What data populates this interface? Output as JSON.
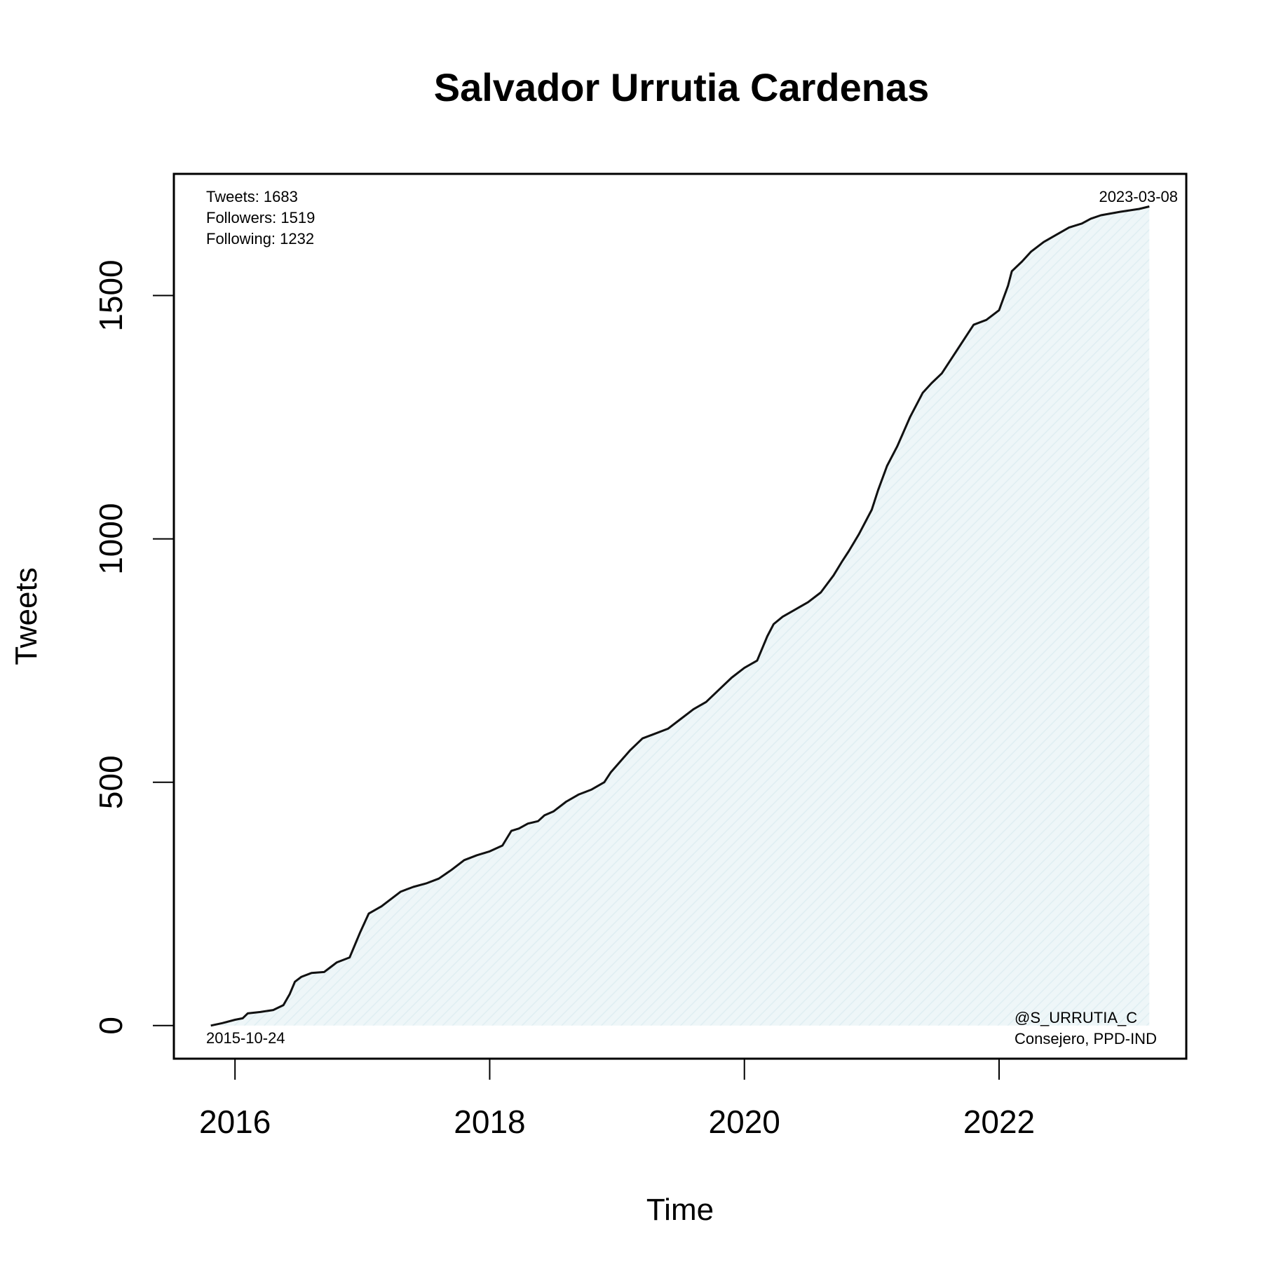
{
  "chart_data": {
    "type": "area",
    "title": "Salvador Urrutia Cardenas",
    "xlabel": "Time",
    "ylabel": "Tweets",
    "xlim": [
      2015.52,
      2023.47
    ],
    "ylim": [
      -68,
      1750
    ],
    "x_ticks": [
      2016,
      2018,
      2020,
      2022
    ],
    "y_ticks": [
      0,
      500,
      1000,
      1500
    ],
    "grid": false,
    "legend": "none",
    "colors": {
      "fill": "#eef6f8",
      "hatch": "#dfeef2",
      "line": "#111111"
    },
    "annotations": {
      "stats": [
        "Tweets: 1683",
        "Followers: 1519",
        "Following: 1232"
      ],
      "start_date": "2015-10-24",
      "end_date": "2023-03-08",
      "handle": "@S_URRUTIA_C",
      "role": "Consejero, PPD-IND"
    },
    "series": [
      {
        "x": [
          2015.81,
          2015.9,
          2016.0,
          2016.06,
          2016.1,
          2016.2,
          2016.3,
          2016.38,
          2016.43,
          2016.47,
          2016.52,
          2016.6,
          2016.7,
          2016.75,
          2016.8,
          2016.9,
          2016.98,
          2017.05,
          2017.15,
          2017.2,
          2017.3,
          2017.35,
          2017.4,
          2017.5,
          2017.6,
          2017.7,
          2017.8,
          2017.9,
          2018.0,
          2018.1,
          2018.17,
          2018.23,
          2018.3,
          2018.38,
          2018.43,
          2018.5,
          2018.6,
          2018.7,
          2018.8,
          2018.9,
          2018.95,
          2019.0,
          2019.1,
          2019.2,
          2019.3,
          2019.4,
          2019.5,
          2019.6,
          2019.7,
          2019.8,
          2019.9,
          2020.0,
          2020.1,
          2020.18,
          2020.23,
          2020.3,
          2020.4,
          2020.5,
          2020.6,
          2020.7,
          2020.77,
          2020.82,
          2020.9,
          2021.0,
          2021.05,
          2021.12,
          2021.2,
          2021.3,
          2021.4,
          2021.47,
          2021.55,
          2021.7,
          2021.75,
          2021.8,
          2021.9,
          2022.0,
          2022.07,
          2022.1,
          2022.18,
          2022.25,
          2022.35,
          2022.45,
          2022.55,
          2022.65,
          2022.72,
          2022.8,
          2022.95,
          2023.1,
          2023.18
        ],
        "y": [
          0,
          5,
          12,
          15,
          25,
          28,
          32,
          42,
          65,
          90,
          100,
          108,
          110,
          120,
          130,
          140,
          190,
          230,
          245,
          255,
          275,
          280,
          285,
          292,
          302,
          320,
          340,
          350,
          358,
          370,
          400,
          405,
          415,
          420,
          432,
          440,
          460,
          475,
          485,
          500,
          520,
          535,
          565,
          590,
          600,
          610,
          630,
          650,
          665,
          690,
          715,
          735,
          750,
          800,
          825,
          840,
          855,
          870,
          890,
          925,
          955,
          975,
          1010,
          1060,
          1100,
          1150,
          1190,
          1250,
          1300,
          1320,
          1340,
          1400,
          1420,
          1440,
          1450,
          1470,
          1520,
          1550,
          1570,
          1590,
          1610,
          1625,
          1640,
          1648,
          1658,
          1665,
          1672,
          1678,
          1683
        ]
      }
    ]
  }
}
